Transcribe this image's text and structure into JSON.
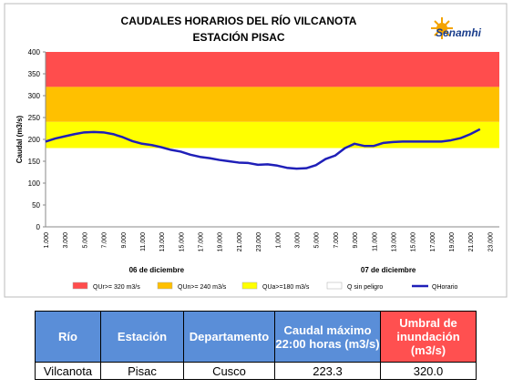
{
  "chart_data": {
    "type": "line",
    "title": "CAUDALES HORARIOS DEL RÍO VILCANOTA",
    "subtitle": "ESTACIÓN PISAC",
    "y_label": "Caudal (m3/s)",
    "categories": [
      "1.000",
      null,
      "3.000",
      null,
      "5.000",
      null,
      "7.000",
      null,
      "9.000",
      null,
      "11.000",
      null,
      "13.000",
      null,
      "15.000",
      null,
      "17.000",
      null,
      "19.000",
      null,
      "21.000",
      null,
      "23.000",
      null,
      "1.000",
      null,
      "3.000",
      null,
      "5.000",
      null,
      "7.000",
      null,
      "9.000",
      null,
      "11.000",
      null,
      "13.000",
      null,
      "15.000",
      null,
      "17.000",
      null,
      "19.000",
      null,
      "21.000",
      null,
      "23.000",
      null
    ],
    "x_groups": [
      "06 de diciembre",
      "07 de diciembre"
    ],
    "series": [
      {
        "name": "QHorario",
        "color": "#1f1fb8",
        "values": [
          195,
          202,
          207,
          212,
          216,
          217,
          216,
          212,
          205,
          196,
          190,
          187,
          182,
          176,
          172,
          165,
          160,
          157,
          153,
          150,
          147,
          146,
          142,
          143,
          140,
          135,
          133,
          134,
          141,
          155,
          163,
          180,
          190,
          185,
          185,
          192,
          194,
          195,
          195,
          195,
          195,
          195,
          198,
          203,
          212,
          223.3,
          null,
          null
        ]
      }
    ],
    "bands": [
      {
        "name": "QUr>= 320 m3/s",
        "color": "#ff4d4d",
        "from": 320,
        "to": 400
      },
      {
        "name": "QUn>= 240 m3/s",
        "color": "#ffc000",
        "from": 240,
        "to": 320
      },
      {
        "name": "QUa>=180 m3/s",
        "color": "#ffff00",
        "from": 180,
        "to": 240
      },
      {
        "name": "Q sin peligro",
        "color": "#ffffff",
        "from": 0,
        "to": 180
      }
    ],
    "ylim": [
      0,
      400
    ],
    "yticks": [
      0,
      50,
      100,
      150,
      200,
      250,
      300,
      350,
      400
    ]
  },
  "logo": {
    "text": "Senamhi"
  },
  "table": {
    "header": [
      "Río",
      "Estación",
      "Departamento",
      "Caudal máximo 22:00 horas (m3/s)",
      "Umbral de inundación (m3/s)"
    ],
    "rows": [
      [
        "Vilcanota",
        "Pisac",
        "Cusco",
        "223.3",
        "320.0"
      ]
    ]
  }
}
